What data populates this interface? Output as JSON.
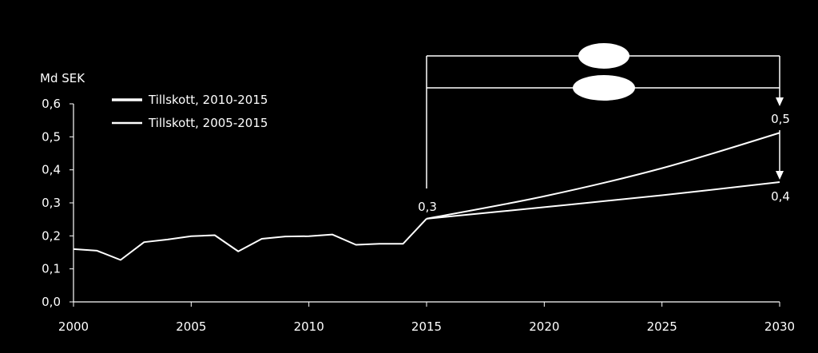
{
  "chart_data": {
    "type": "line",
    "ylabel": "Md SEK",
    "ylim": [
      0,
      0.6
    ],
    "xlim": [
      2000,
      2030
    ],
    "y_ticks": [
      "0,0",
      "0,1",
      "0,2",
      "0,3",
      "0,4",
      "0,5",
      "0,6"
    ],
    "x_ticks": [
      "2000",
      "2005",
      "2010",
      "2015",
      "2020",
      "2025",
      "2030"
    ],
    "grid": false,
    "legend_position": "top-left",
    "colors": {
      "background": "#000000",
      "foreground": "#ffffff"
    },
    "historical": {
      "x": [
        2000,
        2001,
        2002,
        2003,
        2004,
        2005,
        2006,
        2007,
        2008,
        2009,
        2010,
        2011,
        2012,
        2013,
        2014,
        2015
      ],
      "y": [
        0.16,
        0.155,
        0.127,
        0.181,
        0.189,
        0.199,
        0.202,
        0.153,
        0.191,
        0.198,
        0.199,
        0.204,
        0.173,
        0.176,
        0.176,
        0.252
      ]
    },
    "series": [
      {
        "name": "Tillskott, 2010-2015",
        "x": [
          2015,
          2020,
          2025,
          2030
        ],
        "y": [
          0.252,
          0.32,
          0.405,
          0.512
        ]
      },
      {
        "name": "Tillskott, 2005-2015",
        "x": [
          2015,
          2020,
          2025,
          2030
        ],
        "y": [
          0.252,
          0.287,
          0.323,
          0.363
        ]
      }
    ],
    "annotations": [
      {
        "text": "0,3",
        "x": 2015,
        "y": 0.252
      },
      {
        "text": "0,5",
        "x": 2030,
        "y": 0.512
      },
      {
        "text": "0,4",
        "x": 2030,
        "y": 0.363
      }
    ]
  }
}
